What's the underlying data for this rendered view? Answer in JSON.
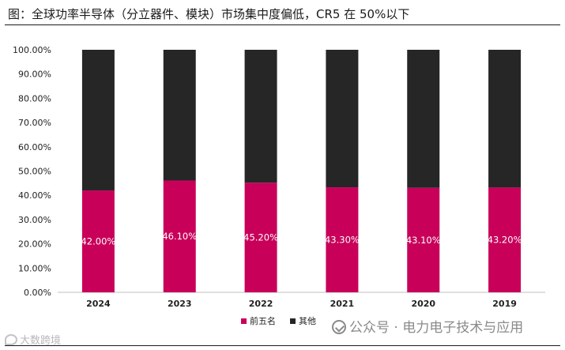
{
  "title": "图：全球功率半导体（分立器件、模块）市场集中度偏低，CR5 在 50%以下",
  "watermark": "公众号 · 电力电子技术与应用",
  "source_logo": "大数跨境",
  "colors": {
    "top5": "#c8005a",
    "others": "#262626",
    "axis": "#bfbfbf"
  },
  "chart_data": {
    "type": "bar",
    "stacked": true,
    "categories": [
      "2024",
      "2023",
      "2022",
      "2021",
      "2020",
      "2019"
    ],
    "series": [
      {
        "name": "前五名",
        "values": [
          42.0,
          46.1,
          45.2,
          43.3,
          43.1,
          43.2
        ],
        "labels": [
          "42.00%",
          "46.10%",
          "45.20%",
          "43.30%",
          "43.10%",
          "43.20%"
        ]
      },
      {
        "name": "其他",
        "values": [
          58.0,
          53.9,
          54.8,
          56.7,
          56.9,
          56.8
        ]
      }
    ],
    "ylim": [
      0,
      100
    ],
    "yticks": [
      "0.00%",
      "10.00%",
      "20.00%",
      "30.00%",
      "40.00%",
      "50.00%",
      "60.00%",
      "70.00%",
      "80.00%",
      "90.00%",
      "100.00%"
    ],
    "legend_position": "bottom",
    "grid": false
  }
}
